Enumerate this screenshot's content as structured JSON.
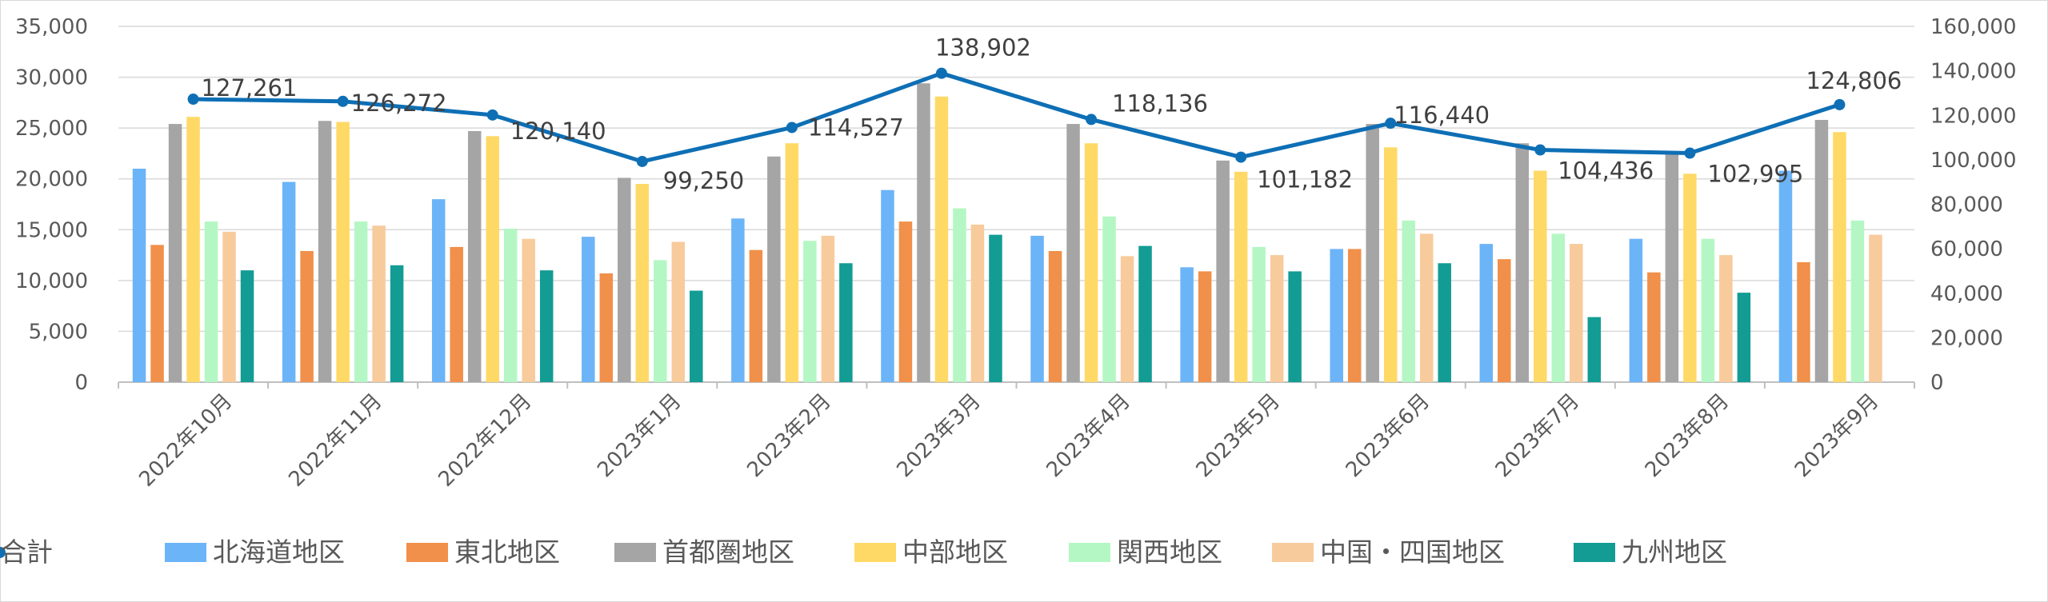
{
  "chart_data": {
    "type": "bar",
    "title": "",
    "categories": [
      "2022年10月",
      "2022年11月",
      "2022年12月",
      "2023年1月",
      "2023年2月",
      "2023年3月",
      "2023年4月",
      "2023年5月",
      "2023年6月",
      "2023年7月",
      "2023年8月",
      "2023年9月"
    ],
    "ylim": [
      0,
      35000
    ],
    "y2lim": [
      0,
      160000
    ],
    "yticks": [
      "0",
      "5,000",
      "10,000",
      "15,000",
      "20,000",
      "25,000",
      "30,000",
      "35,000"
    ],
    "y2ticks": [
      "0",
      "20,000",
      "40,000",
      "60,000",
      "80,000",
      "100,000",
      "120,000",
      "140,000",
      "160,000"
    ],
    "grid": true,
    "legend_position": "bottom",
    "series": [
      {
        "name": "北海道地区",
        "type": "bar",
        "axis": "left",
        "color": "#6cb4f8",
        "values": [
          21000,
          19700,
          18000,
          14300,
          16100,
          18900,
          14400,
          11300,
          13100,
          13600,
          14100,
          20800
        ]
      },
      {
        "name": "東北地区",
        "type": "bar",
        "axis": "left",
        "color": "#f0904a",
        "values": [
          13500,
          12900,
          13300,
          10700,
          13000,
          15800,
          12900,
          10900,
          13100,
          12100,
          10800,
          11800
        ]
      },
      {
        "name": "首都圏地区",
        "type": "bar",
        "axis": "left",
        "color": "#a5a5a5",
        "values": [
          25400,
          25700,
          24700,
          20100,
          22200,
          29400,
          25400,
          21800,
          25400,
          23500,
          22600,
          25800
        ]
      },
      {
        "name": "中部地区",
        "type": "bar",
        "axis": "left",
        "color": "#ffd966",
        "values": [
          26100,
          25600,
          24200,
          19500,
          23500,
          28100,
          23500,
          20700,
          23100,
          20800,
          20500,
          24600
        ]
      },
      {
        "name": "関西地区",
        "type": "bar",
        "axis": "left",
        "color": "#b4f7c4",
        "values": [
          15800,
          15800,
          15100,
          12000,
          13900,
          17100,
          16300,
          13300,
          15900,
          14600,
          14100,
          15900
        ]
      },
      {
        "name": "中国・四国地区",
        "type": "bar",
        "axis": "left",
        "color": "#f8cb9c",
        "values": [
          14800,
          15400,
          14100,
          13800,
          14400,
          15500,
          12400,
          12500,
          14600,
          13600,
          12500,
          14500
        ]
      },
      {
        "name": "九州地区",
        "type": "bar",
        "axis": "left",
        "color": "#129c94",
        "values": [
          11000,
          11500,
          11000,
          9000,
          11700,
          14500,
          13400,
          10900,
          11700,
          6400,
          8800,
          null
        ]
      },
      {
        "name": "合計",
        "type": "line",
        "axis": "right",
        "color": "#0e6fb5",
        "values": [
          127261,
          126272,
          120140,
          99250,
          114527,
          138902,
          118136,
          101182,
          116440,
          104436,
          102995,
          124806
        ],
        "labels": [
          "127,261",
          "126,272",
          "120,140",
          "99,250",
          "114,527",
          "138,902",
          "118,136",
          "101,182",
          "116,440",
          "104,436",
          "102,995",
          "124,806"
        ]
      }
    ]
  }
}
